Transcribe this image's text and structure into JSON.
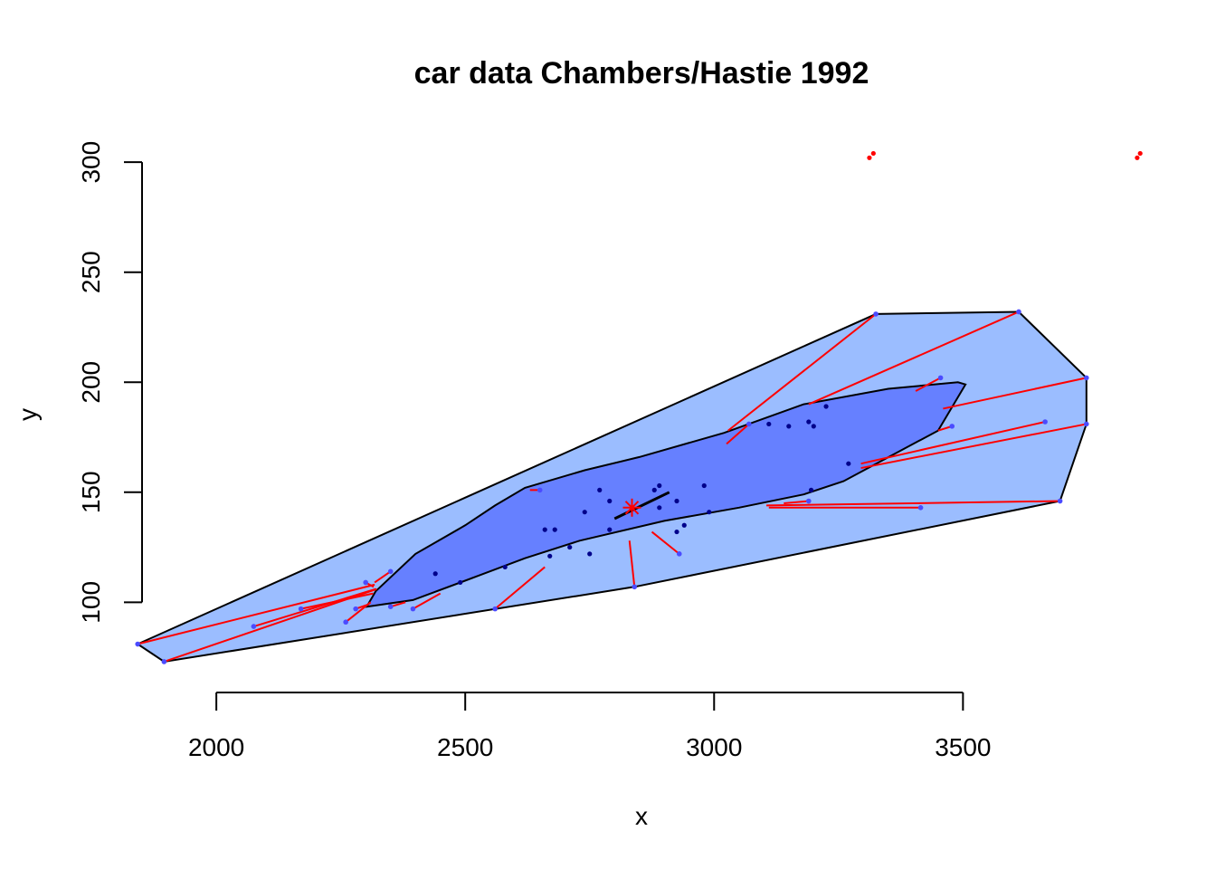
{
  "chart_data": {
    "type": "scatter",
    "title": "car data Chambers/Hastie 1992",
    "xlabel": "x",
    "ylabel": "y",
    "xlim": [
      1818,
      3892
    ],
    "ylim": [
      59,
      312
    ],
    "x_ticks": [
      "2000",
      "2500",
      "3000",
      "3500"
    ],
    "y_ticks": [
      "100",
      "150",
      "200",
      "250",
      "300"
    ],
    "grid": false,
    "colors": {
      "outer_fence": "#9bbdff",
      "inner_bag": "#6680ff",
      "points": "#00008b",
      "outliers": "#ff0000",
      "connectors": "#ff0000",
      "center": "#ff0000"
    },
    "outer_fence": [
      [
        1842,
        81
      ],
      [
        1895,
        73
      ],
      [
        2840,
        107
      ],
      [
        3695,
        146
      ],
      [
        3748,
        181
      ],
      [
        3748,
        202
      ],
      [
        3612,
        232
      ],
      [
        3325,
        231
      ]
    ],
    "inner_bag": [
      [
        2302,
        98
      ],
      [
        2395,
        101
      ],
      [
        2490,
        109
      ],
      [
        2620,
        120
      ],
      [
        2730,
        128
      ],
      [
        2900,
        137
      ],
      [
        3050,
        143
      ],
      [
        3180,
        149
      ],
      [
        3260,
        155
      ],
      [
        3450,
        178
      ],
      [
        3505,
        199
      ],
      [
        3490,
        200
      ],
      [
        3350,
        197
      ],
      [
        3180,
        190
      ],
      [
        3020,
        177
      ],
      [
        2850,
        166
      ],
      [
        2740,
        160
      ],
      [
        2620,
        152
      ],
      [
        2560,
        144
      ],
      [
        2500,
        135
      ],
      [
        2400,
        122
      ],
      [
        2320,
        105
      ]
    ],
    "center": [
      2835,
      143
    ],
    "center_line": [
      [
        2800,
        138
      ],
      [
        2910,
        150
      ]
    ],
    "inner_points": [
      [
        2890,
        153
      ],
      [
        2880,
        151
      ],
      [
        2770,
        151
      ],
      [
        2980,
        153
      ],
      [
        2790,
        146
      ],
      [
        2925,
        146
      ],
      [
        2740,
        141
      ],
      [
        2890,
        143
      ],
      [
        2990,
        141
      ],
      [
        2680,
        133
      ],
      [
        2790,
        133
      ],
      [
        2660,
        133
      ],
      [
        2710,
        125
      ],
      [
        2940,
        135
      ],
      [
        2925,
        132
      ],
      [
        2670,
        121
      ],
      [
        2750,
        122
      ],
      [
        2580,
        116
      ],
      [
        2440,
        113
      ],
      [
        2490,
        109
      ],
      [
        3110,
        181
      ],
      [
        3150,
        180
      ],
      [
        3190,
        182
      ],
      [
        3200,
        180
      ],
      [
        3225,
        189
      ],
      [
        3270,
        163
      ],
      [
        3195,
        151
      ]
    ],
    "outer_points": [
      [
        2350,
        114
      ],
      [
        2300,
        109
      ],
      [
        2170,
        97
      ],
      [
        2075,
        89
      ],
      [
        2260,
        91
      ],
      [
        2280,
        97
      ],
      [
        2350,
        98
      ],
      [
        2395,
        97
      ],
      [
        2560,
        97
      ],
      [
        1842,
        81
      ],
      [
        1895,
        73
      ],
      [
        2840,
        107
      ],
      [
        2930,
        122
      ],
      [
        3070,
        181
      ],
      [
        3325,
        231
      ],
      [
        3612,
        232
      ],
      [
        3455,
        202
      ],
      [
        3748,
        202
      ],
      [
        3478,
        180
      ],
      [
        3665,
        182
      ],
      [
        3748,
        181
      ],
      [
        3695,
        146
      ],
      [
        3415,
        143
      ],
      [
        3190,
        146
      ],
      [
        2650,
        151
      ]
    ],
    "connectors": [
      [
        [
          2350,
          114
        ],
        [
          2318,
          109
        ]
      ],
      [
        [
          2300,
          109
        ],
        [
          2316,
          107
        ]
      ],
      [
        [
          2170,
          97
        ],
        [
          2315,
          104
        ]
      ],
      [
        [
          2075,
          89
        ],
        [
          2320,
          106
        ]
      ],
      [
        [
          2260,
          91
        ],
        [
          2310,
          100
        ]
      ],
      [
        [
          2280,
          97
        ],
        [
          2305,
          99
        ]
      ],
      [
        [
          2350,
          98
        ],
        [
          2380,
          100
        ]
      ],
      [
        [
          2395,
          97
        ],
        [
          2450,
          104
        ]
      ],
      [
        [
          2560,
          97
        ],
        [
          2660,
          116
        ]
      ],
      [
        [
          1842,
          81
        ],
        [
          2318,
          108
        ]
      ],
      [
        [
          1895,
          73
        ],
        [
          2322,
          106
        ]
      ],
      [
        [
          2840,
          107
        ],
        [
          2830,
          128
        ]
      ],
      [
        [
          2930,
          122
        ],
        [
          2875,
          132
        ]
      ],
      [
        [
          3070,
          181
        ],
        [
          3025,
          172
        ]
      ],
      [
        [
          3325,
          231
        ],
        [
          3028,
          178
        ]
      ],
      [
        [
          3612,
          232
        ],
        [
          3190,
          190
        ]
      ],
      [
        [
          3455,
          202
        ],
        [
          3405,
          196
        ]
      ],
      [
        [
          3748,
          202
        ],
        [
          3460,
          188
        ]
      ],
      [
        [
          3478,
          180
        ],
        [
          3450,
          178
        ]
      ],
      [
        [
          3665,
          182
        ],
        [
          3295,
          163
        ]
      ],
      [
        [
          3748,
          181
        ],
        [
          3295,
          161
        ]
      ],
      [
        [
          3695,
          146
        ],
        [
          3105,
          144
        ]
      ],
      [
        [
          3415,
          143
        ],
        [
          3110,
          143
        ]
      ],
      [
        [
          3190,
          146
        ],
        [
          3140,
          145
        ]
      ],
      [
        [
          2650,
          151
        ],
        [
          2630,
          151
        ]
      ]
    ],
    "outliers": [
      [
        3312,
        302
      ],
      [
        3320,
        304
      ],
      [
        3850,
        302
      ],
      [
        3856,
        304
      ]
    ]
  }
}
